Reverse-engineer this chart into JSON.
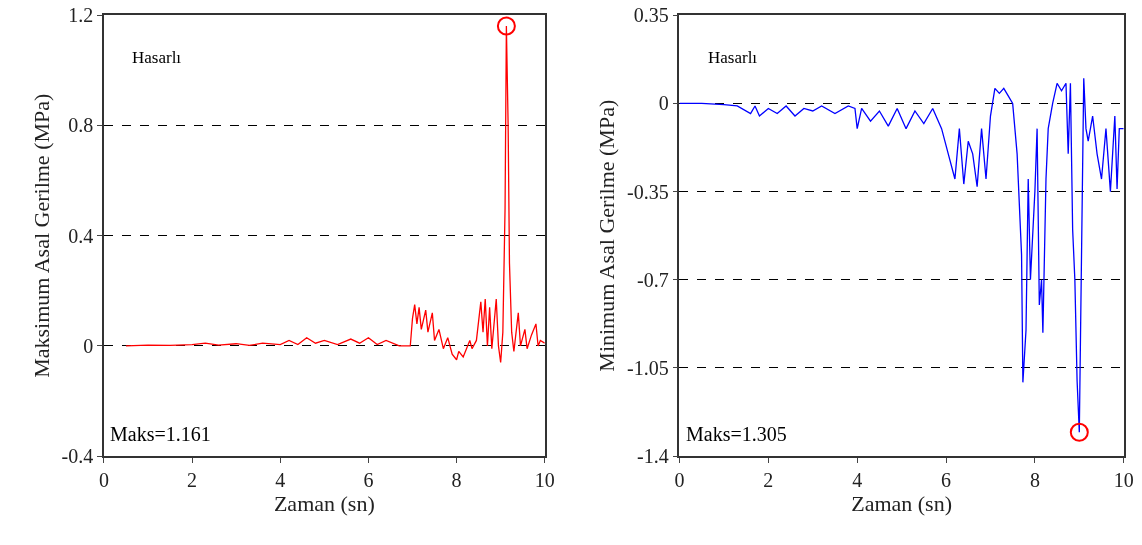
{
  "chart_data": [
    {
      "type": "line",
      "xlabel": "Zaman (sn)",
      "ylabel": "Maksimum Asal Gerilme (MPa)",
      "xlim": [
        0,
        10
      ],
      "xticks": [
        0,
        2,
        4,
        6,
        8,
        10
      ],
      "ylim": [
        -0.4,
        1.2
      ],
      "yticks": [
        -0.4,
        0,
        0.4,
        0.8,
        1.2
      ],
      "grid": "y",
      "annotations": [
        "Hasarlı",
        "Maks=1.161"
      ],
      "series": [
        {
          "color": "#ff0000",
          "x": [
            0.5,
            1,
            1.5,
            2,
            2.3,
            2.6,
            3,
            3.3,
            3.6,
            4,
            4.2,
            4.4,
            4.6,
            4.8,
            5,
            5.3,
            5.6,
            5.8,
            6,
            6.2,
            6.4,
            6.7,
            6.95,
            7.0,
            7.05,
            7.1,
            7.15,
            7.2,
            7.3,
            7.35,
            7.45,
            7.5,
            7.6,
            7.7,
            7.8,
            7.9,
            8.0,
            8.05,
            8.15,
            8.3,
            8.35,
            8.45,
            8.55,
            8.6,
            8.65,
            8.7,
            8.75,
            8.8,
            8.9,
            8.95,
            9.0,
            9.05,
            9.1,
            9.13,
            9.17,
            9.2,
            9.25,
            9.3,
            9.4,
            9.45,
            9.55,
            9.6,
            9.7,
            9.8,
            9.85,
            9.9,
            10
          ],
          "values": [
            0,
            0.003,
            0.002,
            0.005,
            0.01,
            0.003,
            0.008,
            0.002,
            0.01,
            0.005,
            0.02,
            0.005,
            0.03,
            0.01,
            0.02,
            0.005,
            0.025,
            0.01,
            0.03,
            0.005,
            0.02,
            0,
            0,
            0.1,
            0.15,
            0.08,
            0.14,
            0.06,
            0.13,
            0.05,
            0.12,
            0.02,
            0.06,
            -0.01,
            0.03,
            -0.03,
            -0.05,
            -0.02,
            -0.04,
            0.02,
            -0.01,
            0.02,
            0.16,
            0.05,
            0.17,
            0,
            0.14,
            -0.01,
            0.17,
            0,
            -0.06,
            0.05,
            0.5,
            1.161,
            0.8,
            0.3,
            0.05,
            -0.02,
            0.12,
            0,
            0.06,
            -0.01,
            0.04,
            0.08,
            0,
            0.02,
            0.01
          ]
        },
        {
          "type": "scatter",
          "marker": "circle",
          "color": "#ff0000",
          "x": [
            9.13
          ],
          "values": [
            1.161
          ]
        }
      ]
    },
    {
      "type": "line",
      "xlabel": "Zaman (sn)",
      "ylabel": "Minimum Asal Gerilme (MPa)",
      "xlim": [
        0,
        10
      ],
      "xticks": [
        0,
        2,
        4,
        6,
        8,
        10
      ],
      "ylim": [
        -1.4,
        0.35
      ],
      "yticks": [
        -1.4,
        -1.05,
        -0.7,
        -0.35,
        0,
        0.35
      ],
      "grid": "y",
      "annotations": [
        "Hasarlı",
        "Maks=1.305"
      ],
      "series": [
        {
          "color": "#0000ff",
          "x": [
            0,
            0.5,
            1,
            1.3,
            1.6,
            1.7,
            1.8,
            2,
            2.2,
            2.4,
            2.6,
            2.8,
            3,
            3.2,
            3.5,
            3.8,
            3.95,
            4.0,
            4.1,
            4.3,
            4.5,
            4.7,
            4.9,
            5.1,
            5.3,
            5.5,
            5.7,
            5.9,
            6.05,
            6.2,
            6.3,
            6.4,
            6.5,
            6.6,
            6.7,
            6.8,
            6.9,
            7.0,
            7.1,
            7.2,
            7.3,
            7.4,
            7.5,
            7.6,
            7.7,
            7.73,
            7.8,
            7.85,
            7.9,
            8.0,
            8.05,
            8.1,
            8.15,
            8.18,
            8.25,
            8.3,
            8.4,
            8.5,
            8.6,
            8.7,
            8.75,
            8.8,
            8.85,
            8.9,
            8.95,
            9.0,
            9.05,
            9.1,
            9.15,
            9.2,
            9.3,
            9.4,
            9.5,
            9.6,
            9.7,
            9.8,
            9.85,
            9.9,
            10
          ],
          "values": [
            0,
            0,
            -0.005,
            -0.01,
            -0.04,
            -0.01,
            -0.05,
            -0.02,
            -0.04,
            -0.01,
            -0.05,
            -0.02,
            -0.03,
            -0.01,
            -0.04,
            -0.01,
            -0.02,
            -0.1,
            -0.02,
            -0.07,
            -0.03,
            -0.09,
            -0.02,
            -0.1,
            -0.03,
            -0.08,
            -0.02,
            -0.1,
            -0.2,
            -0.3,
            -0.1,
            -0.32,
            -0.15,
            -0.2,
            -0.33,
            -0.1,
            -0.3,
            -0.05,
            0.06,
            0.04,
            0.06,
            0.03,
            0.0,
            -0.2,
            -0.6,
            -1.107,
            -0.9,
            -0.3,
            -0.7,
            -0.35,
            -0.1,
            -0.8,
            -0.7,
            -0.91,
            -0.3,
            -0.1,
            0.0,
            0.08,
            0.05,
            0.08,
            -0.2,
            0.08,
            -0.5,
            -0.7,
            -1.1,
            -1.305,
            -0.6,
            0.1,
            -0.1,
            -0.15,
            -0.05,
            -0.2,
            -0.3,
            -0.1,
            -0.35,
            -0.05,
            -0.34,
            -0.1,
            -0.1
          ]
        },
        {
          "type": "scatter",
          "marker": "circle",
          "color": "#ff0000",
          "x": [
            9.0
          ],
          "values": [
            -1.305
          ]
        }
      ]
    }
  ]
}
